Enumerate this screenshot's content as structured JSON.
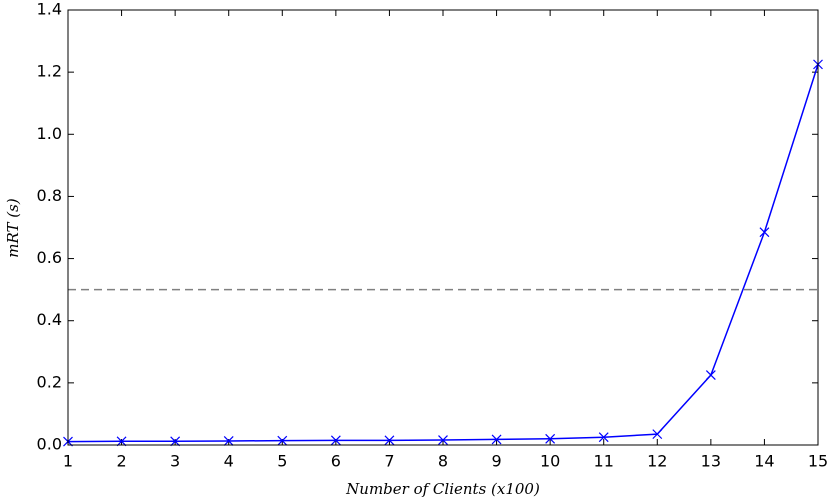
{
  "chart_data": {
    "type": "line",
    "x_label": "Number of Clients (x100)",
    "y_label": "mRT (s)",
    "x": [
      1,
      2,
      3,
      4,
      5,
      6,
      7,
      8,
      9,
      10,
      11,
      12,
      13,
      14,
      15
    ],
    "series": [
      {
        "name": "mRT",
        "color": "#0000ff",
        "marker": "x",
        "values": [
          0.011,
          0.012,
          0.012,
          0.013,
          0.014,
          0.015,
          0.015,
          0.016,
          0.018,
          0.02,
          0.025,
          0.035,
          0.225,
          0.685,
          1.225
        ]
      }
    ],
    "reference_line": {
      "value": 0.5,
      "color": "#808080",
      "style": "dashed"
    },
    "xlim": [
      1,
      15
    ],
    "xticks": [
      1,
      2,
      3,
      4,
      5,
      6,
      7,
      8,
      9,
      10,
      11,
      12,
      13,
      14,
      15
    ],
    "ylim": [
      0,
      1.4
    ],
    "yticks": [
      {
        "value": 0,
        "label": "0.0"
      },
      0.2,
      0.4,
      0.6,
      0.8,
      {
        "value": 1,
        "label": "1.0"
      },
      1.2,
      1.4
    ],
    "grid": false
  }
}
